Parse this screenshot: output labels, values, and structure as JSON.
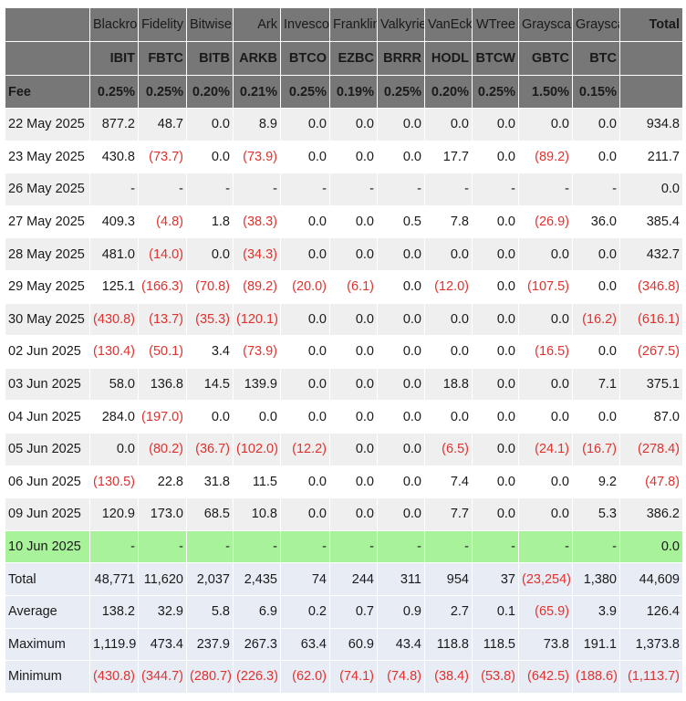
{
  "table": {
    "issuers": [
      "Blackrock",
      "Fidelity",
      "Bitwise",
      "Ark",
      "Invesco",
      "Franklin",
      "Valkyrie",
      "VanEck",
      "WTree",
      "Grayscale",
      "Grayscale"
    ],
    "total_header": "Total",
    "tickers": [
      "IBIT",
      "FBTC",
      "BITB",
      "ARKB",
      "BTCO",
      "EZBC",
      "BRRR",
      "HODL",
      "BTCW",
      "GBTC",
      "BTC"
    ],
    "fee_label": "Fee",
    "fees": [
      "0.25%",
      "0.25%",
      "0.20%",
      "0.21%",
      "0.25%",
      "0.19%",
      "0.25%",
      "0.20%",
      "0.25%",
      "1.50%",
      "0.15%"
    ],
    "rows": [
      {
        "date": "22 May 2025",
        "values": [
          "877.2",
          "48.7",
          "0.0",
          "8.9",
          "0.0",
          "0.0",
          "0.0",
          "0.0",
          "0.0",
          "0.0",
          "0.0",
          "934.8"
        ]
      },
      {
        "date": "23 May 2025",
        "values": [
          "430.8",
          "(73.7)",
          "0.0",
          "(73.9)",
          "0.0",
          "0.0",
          "0.0",
          "17.7",
          "0.0",
          "(89.2)",
          "0.0",
          "211.7"
        ]
      },
      {
        "date": "26 May 2025",
        "values": [
          "-",
          "-",
          "-",
          "-",
          "-",
          "-",
          "-",
          "-",
          "-",
          "-",
          "-",
          "0.0"
        ]
      },
      {
        "date": "27 May 2025",
        "values": [
          "409.3",
          "(4.8)",
          "1.8",
          "(38.3)",
          "0.0",
          "0.0",
          "0.5",
          "7.8",
          "0.0",
          "(26.9)",
          "36.0",
          "385.4"
        ]
      },
      {
        "date": "28 May 2025",
        "values": [
          "481.0",
          "(14.0)",
          "0.0",
          "(34.3)",
          "0.0",
          "0.0",
          "0.0",
          "0.0",
          "0.0",
          "0.0",
          "0.0",
          "432.7"
        ]
      },
      {
        "date": "29 May 2025",
        "values": [
          "125.1",
          "(166.3)",
          "(70.8)",
          "(89.2)",
          "(20.0)",
          "(6.1)",
          "0.0",
          "(12.0)",
          "0.0",
          "(107.5)",
          "0.0",
          "(346.8)"
        ]
      },
      {
        "date": "30 May 2025",
        "values": [
          "(430.8)",
          "(13.7)",
          "(35.3)",
          "(120.1)",
          "0.0",
          "0.0",
          "0.0",
          "0.0",
          "0.0",
          "0.0",
          "(16.2)",
          "(616.1)"
        ]
      },
      {
        "date": "02 Jun 2025",
        "values": [
          "(130.4)",
          "(50.1)",
          "3.4",
          "(73.9)",
          "0.0",
          "0.0",
          "0.0",
          "0.0",
          "0.0",
          "(16.5)",
          "0.0",
          "(267.5)"
        ]
      },
      {
        "date": "03 Jun 2025",
        "values": [
          "58.0",
          "136.8",
          "14.5",
          "139.9",
          "0.0",
          "0.0",
          "0.0",
          "18.8",
          "0.0",
          "0.0",
          "7.1",
          "375.1"
        ]
      },
      {
        "date": "04 Jun 2025",
        "values": [
          "284.0",
          "(197.0)",
          "0.0",
          "0.0",
          "0.0",
          "0.0",
          "0.0",
          "0.0",
          "0.0",
          "0.0",
          "0.0",
          "87.0"
        ]
      },
      {
        "date": "05 Jun 2025",
        "values": [
          "0.0",
          "(80.2)",
          "(36.7)",
          "(102.0)",
          "(12.2)",
          "0.0",
          "0.0",
          "(6.5)",
          "0.0",
          "(24.1)",
          "(16.7)",
          "(278.4)"
        ]
      },
      {
        "date": "06 Jun 2025",
        "values": [
          "(130.5)",
          "22.8",
          "31.8",
          "11.5",
          "0.0",
          "0.0",
          "0.0",
          "7.4",
          "0.0",
          "0.0",
          "9.2",
          "(47.8)"
        ]
      },
      {
        "date": "09 Jun 2025",
        "values": [
          "120.9",
          "173.0",
          "68.5",
          "10.8",
          "0.0",
          "0.0",
          "0.0",
          "7.7",
          "0.0",
          "0.0",
          "5.3",
          "386.2"
        ]
      },
      {
        "date": "10 Jun 2025",
        "values": [
          "-",
          "-",
          "-",
          "-",
          "-",
          "-",
          "-",
          "-",
          "-",
          "-",
          "-",
          "0.0"
        ],
        "highlight": true
      }
    ],
    "summary": [
      {
        "label": "Total",
        "values": [
          "48,771",
          "11,620",
          "2,037",
          "2,435",
          "74",
          "244",
          "311",
          "954",
          "37",
          "(23,254)",
          "1,380",
          "44,609"
        ]
      },
      {
        "label": "Average",
        "values": [
          "138.2",
          "32.9",
          "5.8",
          "6.9",
          "0.2",
          "0.7",
          "0.9",
          "2.7",
          "0.1",
          "(65.9)",
          "3.9",
          "126.4"
        ]
      },
      {
        "label": "Maximum",
        "values": [
          "1,119.9",
          "473.4",
          "237.9",
          "267.3",
          "63.4",
          "60.9",
          "43.4",
          "118.8",
          "118.5",
          "73.8",
          "191.1",
          "1,373.8"
        ]
      },
      {
        "label": "Minimum",
        "values": [
          "(430.8)",
          "(344.7)",
          "(280.7)",
          "(226.3)",
          "(62.0)",
          "(74.1)",
          "(74.8)",
          "(38.4)",
          "(53.8)",
          "(642.5)",
          "(188.6)",
          "(1,113.7)"
        ]
      }
    ],
    "colors": {
      "header_bg": "#777777",
      "row_alt_bg": "#efefef",
      "highlight_bg": "#a8f29a",
      "summary_bg": "#e8ecf5",
      "negative": "#e0322e"
    }
  }
}
